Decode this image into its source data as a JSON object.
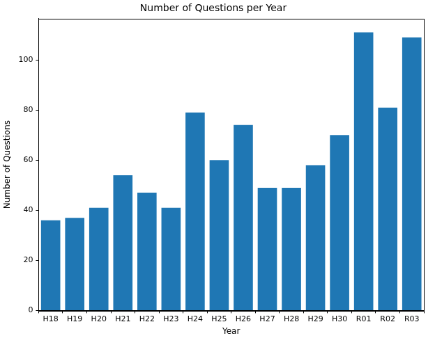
{
  "chart_data": {
    "type": "bar",
    "title": "Number of Questions per Year",
    "x_label": "Year",
    "y_label": "Number of Questions",
    "categories": [
      "H18",
      "H19",
      "H20",
      "H21",
      "H22",
      "H23",
      "H24",
      "H25",
      "H26",
      "H27",
      "H28",
      "H29",
      "H30",
      "R01",
      "R02",
      "R03"
    ],
    "values": [
      36,
      37,
      41,
      54,
      47,
      41,
      79,
      60,
      74,
      49,
      49,
      58,
      70,
      111,
      81,
      109
    ],
    "color": "#1f77b4",
    "ylim": [
      0,
      116.5
    ],
    "yticks": [
      0,
      20,
      40,
      60,
      80,
      100
    ],
    "grid": false
  }
}
